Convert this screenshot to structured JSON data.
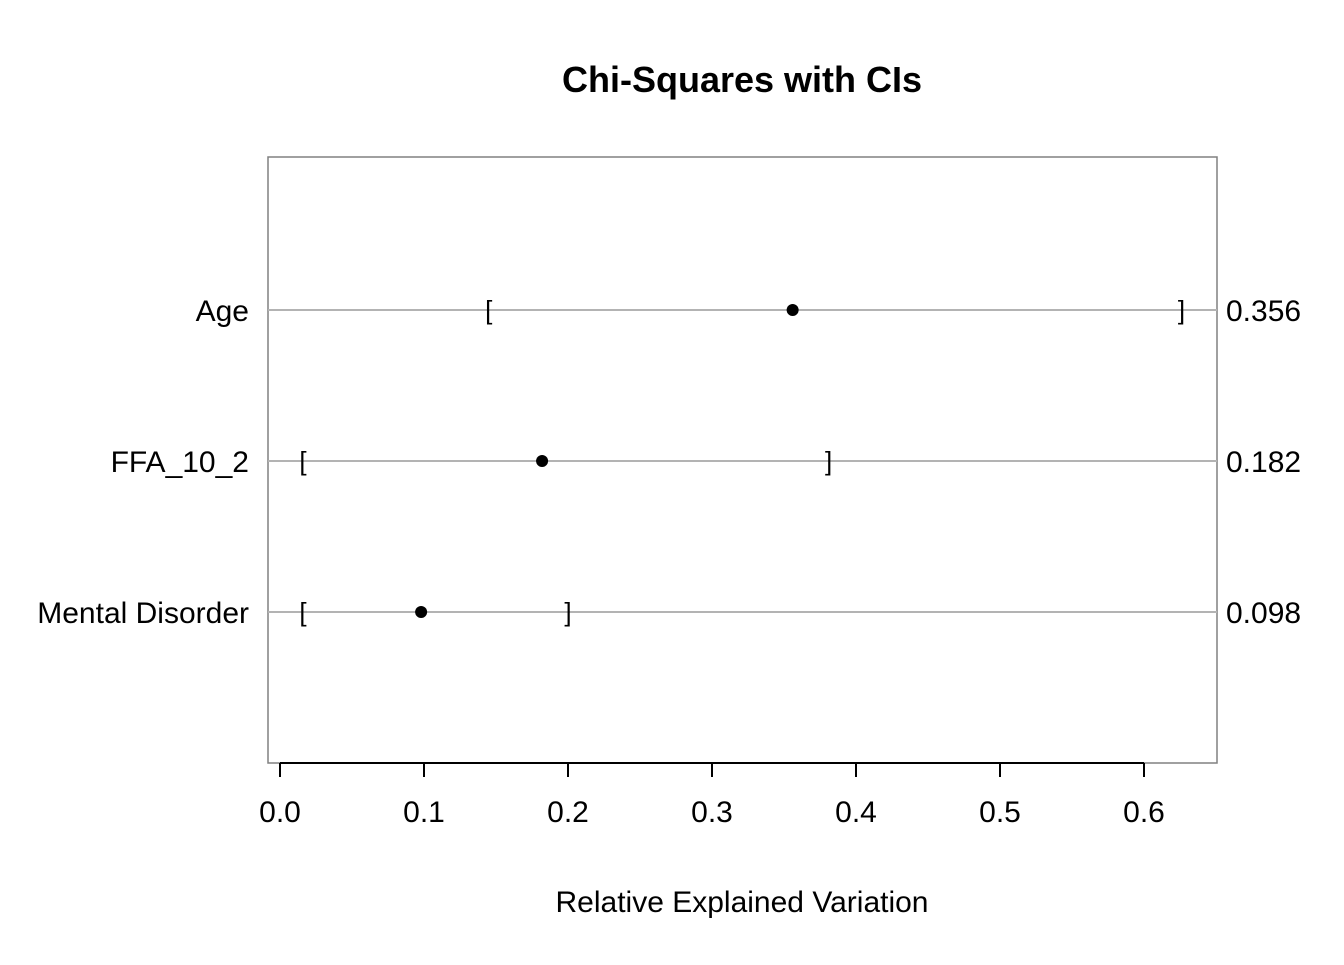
{
  "chart_data": {
    "type": "dot",
    "title": "Chi-Squares with CIs",
    "xlabel": "Relative Explained Variation",
    "ylabel": "",
    "xlim": [
      0.0,
      0.65
    ],
    "xticks": [
      0.0,
      0.1,
      0.2,
      0.3,
      0.4,
      0.5,
      0.6
    ],
    "xtick_labels": [
      "0.0",
      "0.1",
      "0.2",
      "0.3",
      "0.4",
      "0.5",
      "0.6"
    ],
    "grid": false,
    "rows": [
      {
        "label": "Age",
        "value": 0.356,
        "value_label": "0.356",
        "ci": [
          0.145,
          0.626
        ]
      },
      {
        "label": "FFA_10_2",
        "value": 0.182,
        "value_label": "0.182",
        "ci": [
          0.016,
          0.381
        ]
      },
      {
        "label": "Mental Disorder",
        "value": 0.098,
        "value_label": "0.098",
        "ci": [
          0.016,
          0.2
        ]
      }
    ],
    "colors": {
      "point": "#000000",
      "guide_line": "#b3b3b3",
      "frame": "#808080",
      "axis": "#000000"
    }
  }
}
